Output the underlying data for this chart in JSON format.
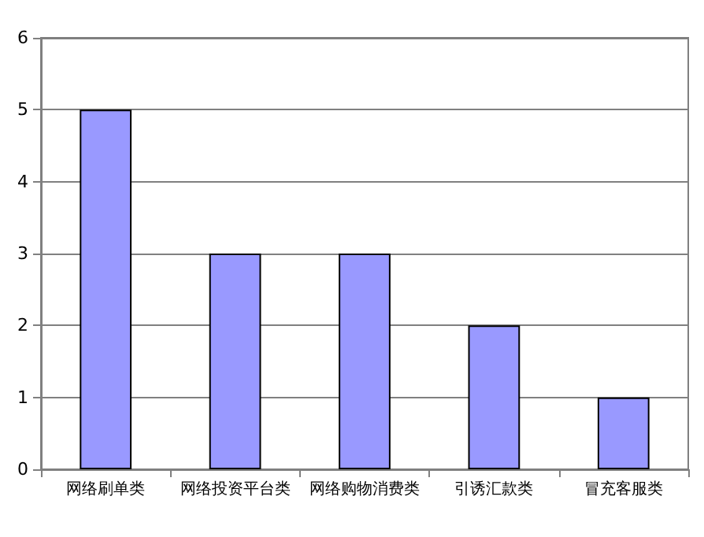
{
  "chart_data": {
    "type": "bar",
    "categories": [
      "网络刷单类",
      "网络投资平台类",
      "网络购物消费类",
      "引诱汇款类",
      "冒充客服类"
    ],
    "values": [
      5,
      3,
      3,
      2,
      1
    ],
    "color": "#9999ff",
    "ylim": [
      0,
      6
    ],
    "yticks": [
      0,
      1,
      2,
      3,
      4,
      5,
      6
    ],
    "grid": "y"
  }
}
